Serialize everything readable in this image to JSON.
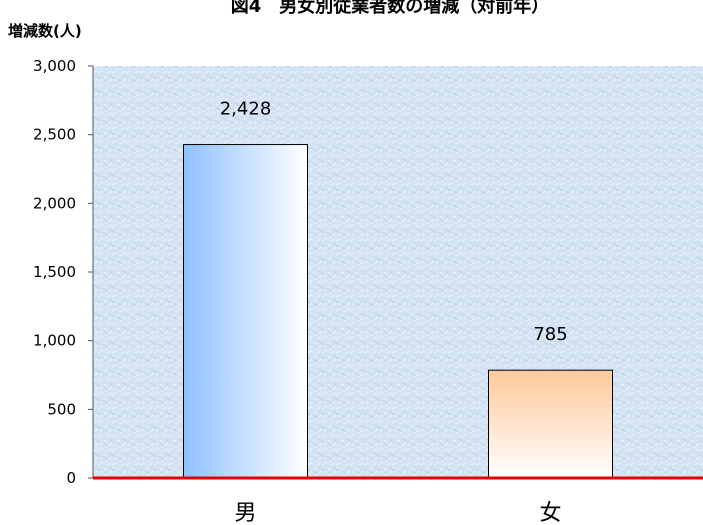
{
  "chart_data": {
    "type": "bar",
    "title": "図4　男女別従業者数の増減（対前年）",
    "ylabel": "増減数(人)",
    "xlabel": "",
    "categories": [
      "男",
      "女"
    ],
    "values": [
      2428,
      785
    ],
    "value_labels": [
      "2,428",
      "785"
    ],
    "ylim": [
      0,
      3000
    ],
    "yticks": [
      0,
      500,
      1000,
      1500,
      2000,
      2500,
      3000
    ],
    "ytick_labels": [
      "0",
      "500",
      "1,000",
      "1,500",
      "2,000",
      "2,500",
      "3,000"
    ],
    "grid": false,
    "legend": "none",
    "colors": {
      "bar_male": "#8fc2ff",
      "bar_female": "#ffc99a",
      "baseline": "#e60000",
      "plot_background": "#d3e3f3"
    }
  }
}
